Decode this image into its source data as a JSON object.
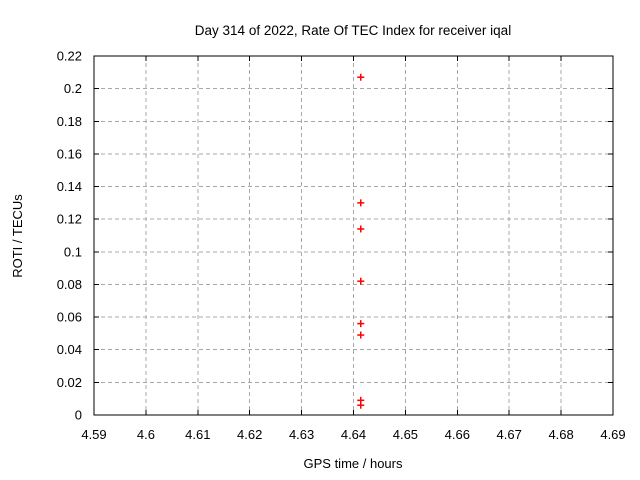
{
  "page": {
    "background": "#ffffff"
  },
  "chart_data": {
    "type": "scatter",
    "title": "Day 314 of 2022, Rate Of TEC Index for receiver iqal",
    "xlabel": "GPS time / hours",
    "ylabel": "ROTI / TECUs",
    "xlim": [
      4.59,
      4.69
    ],
    "ylim": [
      0,
      0.22
    ],
    "xticks": [
      4.59,
      4.6,
      4.61,
      4.62,
      4.63,
      4.64,
      4.65,
      4.66,
      4.67,
      4.68,
      4.69
    ],
    "xtick_labels": [
      "4.59",
      "4.6",
      "4.61",
      "4.62",
      "4.63",
      "4.64",
      "4.65",
      "4.66",
      "4.67",
      "4.68",
      "4.69"
    ],
    "yticks": [
      0,
      0.02,
      0.04,
      0.06,
      0.08,
      0.1,
      0.12,
      0.14,
      0.16,
      0.18,
      0.2,
      0.22
    ],
    "ytick_labels": [
      "0",
      "0.02",
      "0.04",
      "0.06",
      "0.08",
      "0.1",
      "0.12",
      "0.14",
      "0.16",
      "0.18",
      "0.2",
      "0.22"
    ],
    "grid": true,
    "legend": "none",
    "grid_color": "#a8a8a8",
    "border_color": "#000000",
    "tick_color": "#000000",
    "marker": "plus",
    "marker_color": "#ff0000",
    "series": [
      {
        "name": "ROTI",
        "x": [
          4.6414,
          4.6414,
          4.6414,
          4.6414,
          4.6414,
          4.6414,
          4.6414,
          4.6414
        ],
        "y": [
          0.207,
          0.13,
          0.114,
          0.082,
          0.056,
          0.049,
          0.009,
          0.006
        ]
      }
    ]
  }
}
